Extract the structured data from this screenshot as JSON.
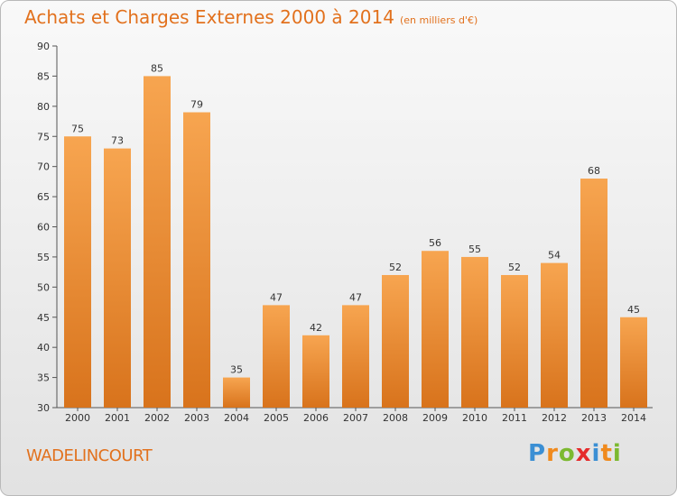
{
  "title": "Achats et Charges Externes 2000 à 2014",
  "subtitle": "(en milliers d'€)",
  "commune": "WADELINCOURT",
  "logo": {
    "letters": [
      "P",
      "r",
      "o",
      "x",
      "i",
      "t",
      "i"
    ],
    "colors": [
      "#3b8fd4",
      "#f08a1d",
      "#7cb930",
      "#e52b2b",
      "#3b8fd4",
      "#f08a1d",
      "#7cb930"
    ]
  },
  "colors": {
    "bar_top": "#f7a550",
    "bar_bottom": "#d8731c",
    "text": "#333333",
    "accent": "#e2711d"
  },
  "chart_data": {
    "type": "bar",
    "categories": [
      "2000",
      "2001",
      "2002",
      "2003",
      "2004",
      "2005",
      "2006",
      "2007",
      "2008",
      "2009",
      "2010",
      "2011",
      "2012",
      "2013",
      "2014"
    ],
    "values": [
      75,
      73,
      85,
      79,
      35,
      47,
      42,
      47,
      52,
      56,
      55,
      52,
      54,
      68,
      45
    ],
    "ylim": [
      30,
      90
    ],
    "yticks": [
      30,
      35,
      40,
      45,
      50,
      55,
      60,
      65,
      70,
      75,
      80,
      85,
      90
    ],
    "data_labels": true,
    "grid": false,
    "legend": "none"
  }
}
